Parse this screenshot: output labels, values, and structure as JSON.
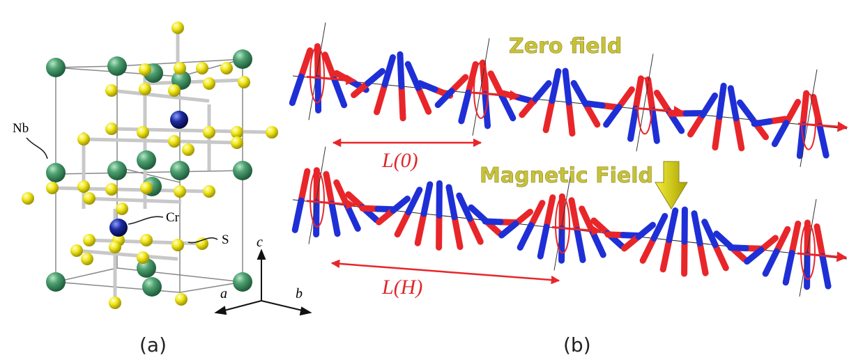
{
  "panel_a": {
    "labels": {
      "nb": "Nb",
      "cr": "Cr",
      "s": "S"
    },
    "axes": {
      "c": "c",
      "a": "a",
      "b": "b"
    },
    "caption": "(a)"
  },
  "panel_b": {
    "top": {
      "title": "Zero field",
      "length": "L(0)"
    },
    "bottom": {
      "title": "Magnetic Field",
      "length": "L(H)"
    },
    "caption": "(b)"
  }
}
